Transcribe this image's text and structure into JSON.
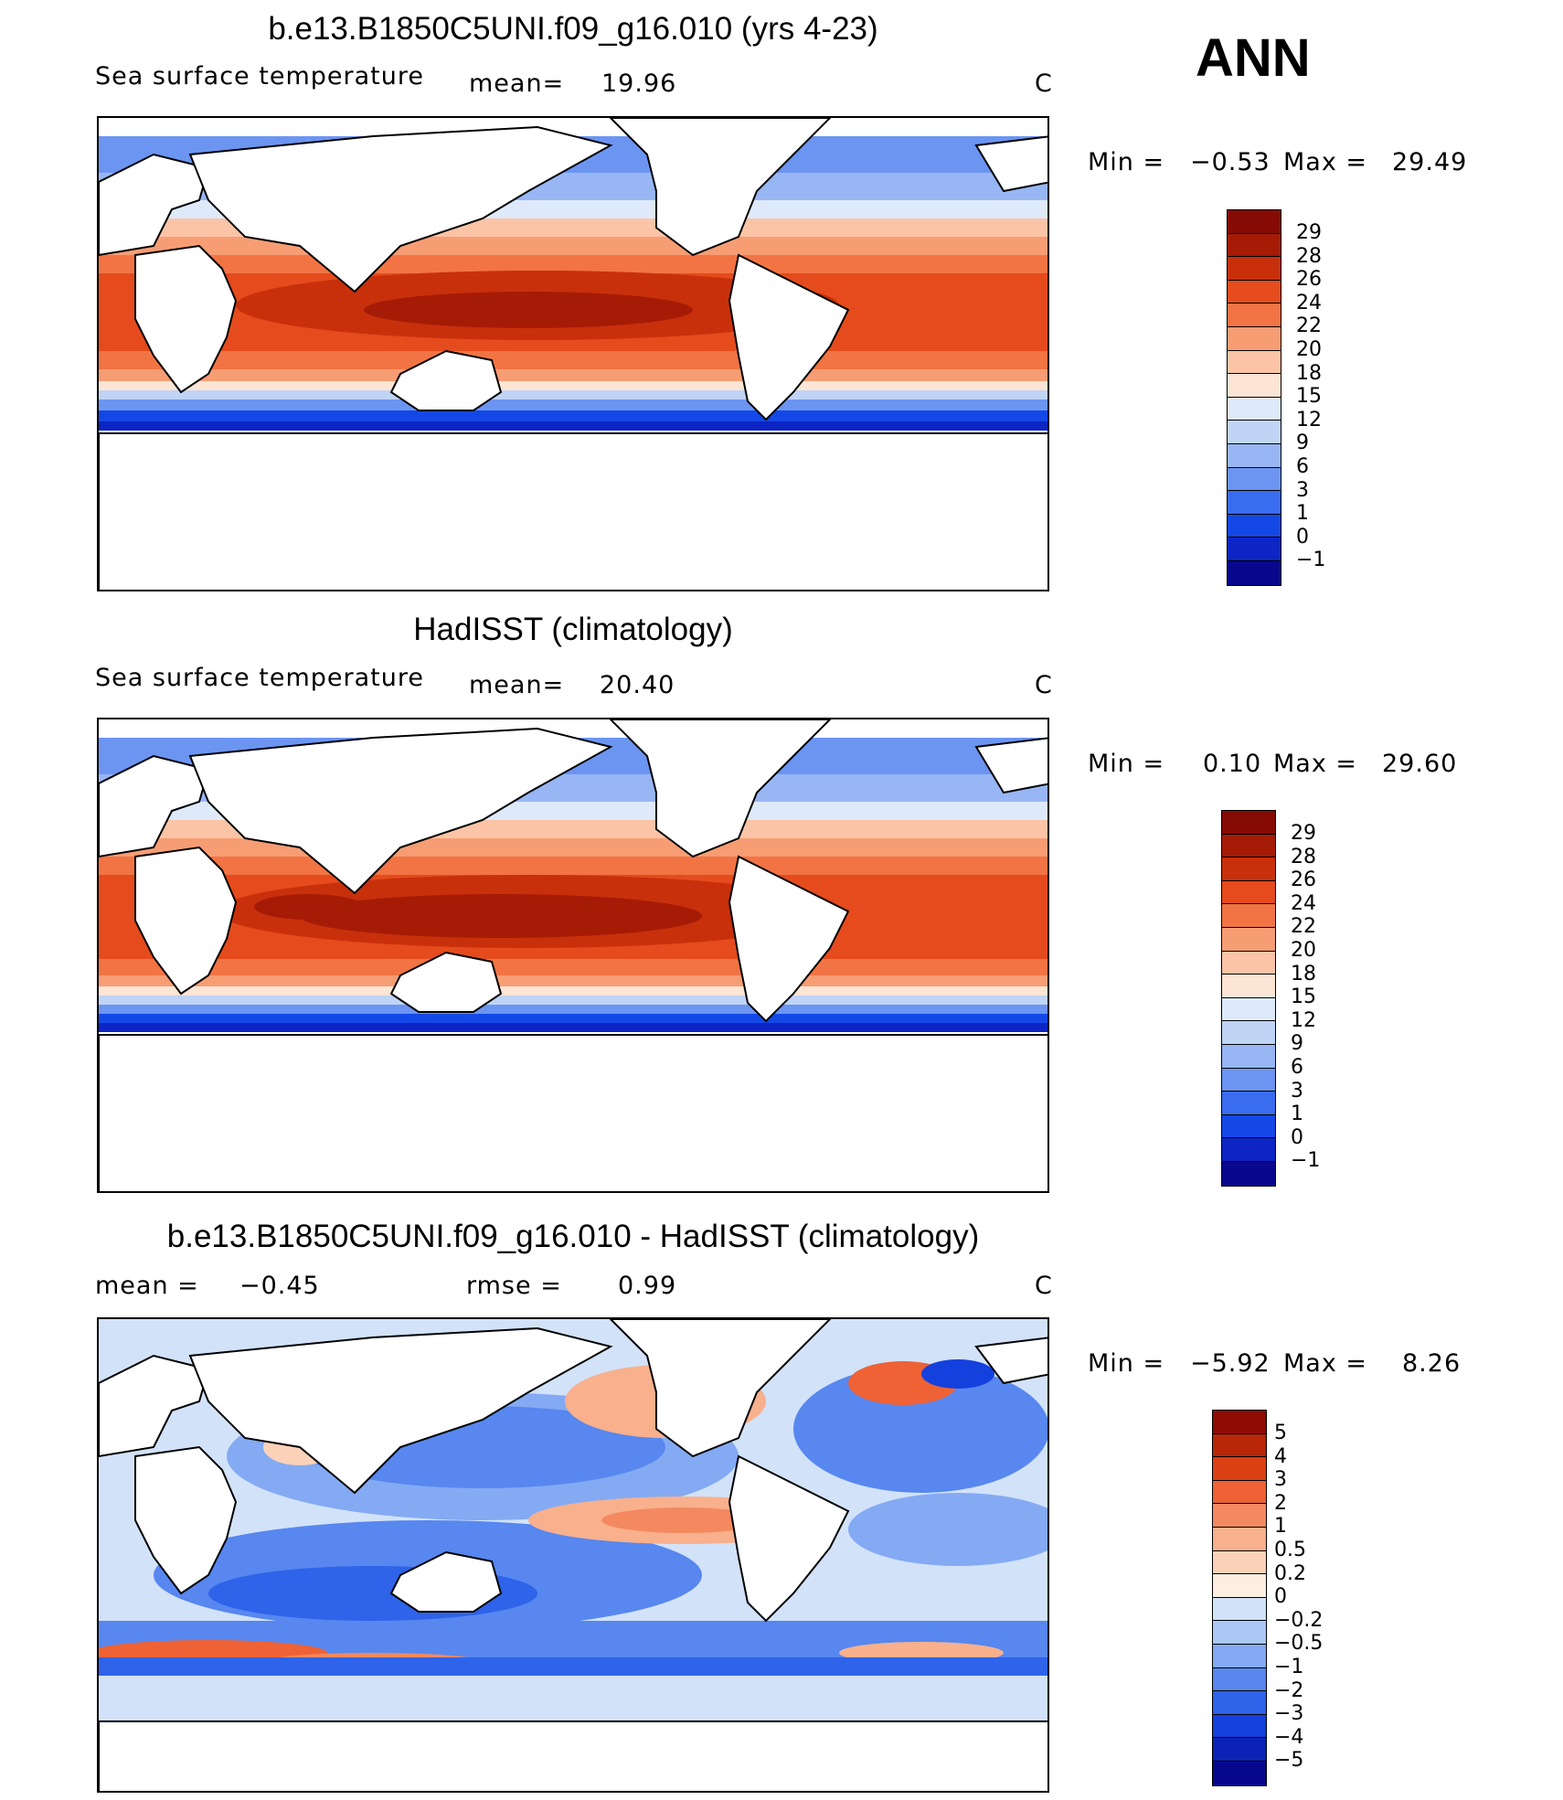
{
  "season": "ANN",
  "scale_colors": [
    "#08088c",
    "#0c25c4",
    "#1448e6",
    "#3a6cf0",
    "#6c95f2",
    "#98b6f4",
    "#c0d4f6",
    "#deeafa",
    "#fde5d5",
    "#fbc4a6",
    "#f79d74",
    "#f27444",
    "#e54b1c",
    "#c8300c",
    "#a61b06",
    "#850b04"
  ],
  "diff_colors": [
    "#08088c",
    "#0c22b6",
    "#1440de",
    "#2e63ea",
    "#5787ef",
    "#84aaf3",
    "#acc8f6",
    "#d2e2f9",
    "#fdeee2",
    "#fbd2b8",
    "#f8b08d",
    "#f48960",
    "#ee6236",
    "#dc4015",
    "#b92608",
    "#8e0c04"
  ],
  "panels": [
    {
      "title": "b.e13.B1850C5UNI.f09_g16.010 (yrs 4-23)",
      "var_label": "Sea surface temperature",
      "mean_label": "mean=",
      "mean_value": "19.96",
      "units": "C",
      "min_label": "Min =",
      "min_value": "−0.53",
      "max_label": "Max =",
      "max_value": "29.49",
      "levels": [
        "29",
        "28",
        "26",
        "24",
        "22",
        "20",
        "18",
        "15",
        "12",
        "9",
        "6",
        "3",
        "1",
        "0",
        "−1"
      ]
    },
    {
      "title": "HadISST (climatology)",
      "var_label": "Sea surface temperature",
      "mean_label": "mean=",
      "mean_value": "20.40",
      "units": "C",
      "min_label": "Min =",
      "min_value": "0.10",
      "max_label": "Max =",
      "max_value": "29.60",
      "levels": [
        "29",
        "28",
        "26",
        "24",
        "22",
        "20",
        "18",
        "15",
        "12",
        "9",
        "6",
        "3",
        "1",
        "0",
        "−1"
      ]
    },
    {
      "title": "b.e13.B1850C5UNI.f09_g16.010 - HadISST (climatology)",
      "mean_label": "mean =",
      "mean_value": "−0.45",
      "rmse_label": "rmse =",
      "rmse_value": "0.99",
      "units": "C",
      "min_label": "Min =",
      "min_value": "−5.92",
      "max_label": "Max =",
      "max_value": "8.26",
      "levels": [
        "5",
        "4",
        "3",
        "2",
        "1",
        "0.5",
        "0.2",
        "0",
        "−0.2",
        "−0.5",
        "−1",
        "−2",
        "−3",
        "−4",
        "−5"
      ]
    }
  ]
}
